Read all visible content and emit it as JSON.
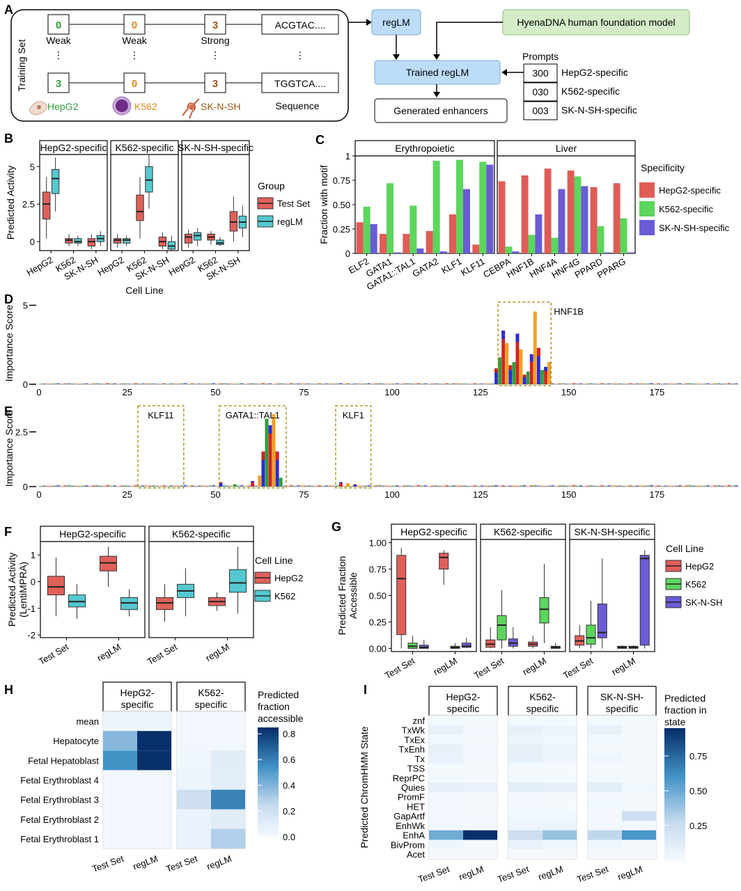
{
  "panel_letters": [
    "A",
    "B",
    "C",
    "D",
    "E",
    "F",
    "G",
    "H",
    "I"
  ],
  "panel_a": {
    "training_set_label": "Training Set",
    "top_row": [
      {
        "value": "0",
        "label": "Weak",
        "color": "#2e9e3c"
      },
      {
        "value": "0",
        "label": "Weak",
        "color": "#e08a1e"
      },
      {
        "value": "3",
        "label": "Strong",
        "color": "#9a5b1a"
      }
    ],
    "bottom_row": [
      {
        "value": "3",
        "label": "HepG2",
        "color": "#2e9e3c"
      },
      {
        "value": "0",
        "label": "K562",
        "color": "#e08a1e"
      },
      {
        "value": "3",
        "label": "SK-N-SH",
        "color": "#9a5b1a"
      }
    ],
    "seq_top": "ACGTAC....",
    "seq_bottom": "TGGTCA....",
    "sequence_label": "Sequence",
    "regLM": "regLM",
    "foundation": "HyenaDNA human foundation model",
    "trained": "Trained regLM",
    "generated": "Generated enhancers",
    "prompts_label": "Prompts",
    "prompts": [
      {
        "code": "300",
        "label": "HepG2-specific"
      },
      {
        "code": "030",
        "label": "K562-specific"
      },
      {
        "code": "003",
        "label": "SK-N-SH-specific"
      }
    ]
  },
  "chart_data": [
    {
      "panel": "B",
      "type": "box",
      "facets": [
        "HepG2-specific",
        "K562-specific",
        "SK-N-SH-specific"
      ],
      "categories": [
        "HepG2",
        "K562",
        "SK-N-SH"
      ],
      "xlabel": "Cell Line",
      "ylabel": "Predicted Activity",
      "ylim": [
        -0.6,
        5.8
      ],
      "yticks": [
        "0",
        "2.5",
        "5"
      ],
      "ytick_values": [
        0,
        2.5,
        5
      ],
      "legend_title": "Group",
      "series": [
        {
          "name": "Test Set",
          "color": "#e0605a"
        },
        {
          "name": "regLM",
          "color": "#54c8d0"
        }
      ],
      "boxes": [
        [
          [
            [
              1.5,
              2.5,
              3.3,
              0.2,
              4.3
            ],
            [
              3.2,
              4.2,
              4.8,
              2.0,
              5.6
            ]
          ],
          [
            [
              -0.1,
              0.1,
              0.2,
              -0.3,
              0.5
            ],
            [
              -0.1,
              0.0,
              0.2,
              -0.3,
              0.4
            ]
          ],
          [
            [
              -0.3,
              0.0,
              0.2,
              -0.5,
              0.5
            ],
            [
              0.0,
              0.2,
              0.4,
              -0.3,
              0.7
            ]
          ]
        ],
        [
          [
            [
              -0.1,
              0.1,
              0.2,
              -0.4,
              0.5
            ],
            [
              -0.1,
              0.1,
              0.2,
              -0.3,
              0.4
            ]
          ],
          [
            [
              1.4,
              2.0,
              3.1,
              0.2,
              4.3
            ],
            [
              3.3,
              4.1,
              5.0,
              2.2,
              5.8
            ]
          ],
          [
            [
              -0.3,
              0.0,
              0.3,
              -0.5,
              0.6
            ],
            [
              -0.5,
              -0.3,
              0.0,
              -0.6,
              0.4
            ]
          ]
        ],
        [
          [
            [
              -0.1,
              0.3,
              0.5,
              -0.4,
              0.8
            ],
            [
              0.1,
              0.4,
              0.6,
              -0.3,
              0.9
            ]
          ],
          [
            [
              0.1,
              0.3,
              0.5,
              -0.2,
              0.7
            ],
            [
              -0.2,
              -0.1,
              0.1,
              -0.3,
              0.3
            ]
          ],
          [
            [
              0.7,
              1.3,
              2.0,
              0.0,
              3.0
            ],
            [
              0.9,
              1.3,
              1.7,
              0.3,
              2.4
            ]
          ]
        ]
      ]
    },
    {
      "panel": "C",
      "type": "bar",
      "facets": [
        {
          "name": "Erythropoietic",
          "categories": [
            "ELF2",
            "GATA1",
            "GATA1::TAL1",
            "GATA2",
            "KLF1",
            "KLF11"
          ]
        },
        {
          "name": "Liver",
          "categories": [
            "CEBPA",
            "HNF1B",
            "HNF4A",
            "HNF4G",
            "PPARD",
            "PPARG"
          ]
        }
      ],
      "ylabel": "Fraction with motif",
      "ylim": [
        0,
        1
      ],
      "yticks": [
        "0",
        "0.25",
        "0.50",
        "0.75",
        "1"
      ],
      "ytick_values": [
        0,
        0.25,
        0.5,
        0.75,
        1
      ],
      "legend_title": "Specificity",
      "series": [
        {
          "name": "HepG2-specific",
          "color": "#e05c57",
          "values": [
            0.32,
            0.2,
            0.2,
            0.23,
            0.4,
            0.09,
            0.74,
            0.8,
            0.87,
            0.85,
            0.68,
            0.72
          ]
        },
        {
          "name": "K562-specific",
          "color": "#5cd65c",
          "values": [
            0.48,
            0.72,
            0.49,
            0.95,
            0.96,
            0.94,
            0.07,
            0.19,
            0.16,
            0.79,
            0.28,
            0.36
          ]
        },
        {
          "name": "SK-N-SH-specific",
          "color": "#6a5cd6",
          "values": [
            0.3,
            0.01,
            0.05,
            0.02,
            0.66,
            0.91,
            0.02,
            0.4,
            0.66,
            0.69,
            0.01,
            0.01
          ]
        }
      ]
    },
    {
      "panel": "D",
      "type": "sequence-logo",
      "ylabel": "Importance Score",
      "yticks": [
        "5",
        "0"
      ],
      "ytick_values": [
        5,
        0
      ],
      "ylim": [
        0,
        5.2
      ],
      "xticks": [
        "0",
        "25",
        "50",
        "75",
        "100",
        "125",
        "150",
        "175"
      ],
      "xtick_values": [
        0,
        25,
        50,
        75,
        100,
        125,
        150,
        175
      ],
      "xlim": [
        0,
        198
      ],
      "motif_boxes": [
        {
          "label": "HNF1B",
          "start": 130,
          "end": 145
        }
      ],
      "peaks": [
        [
          129,
          1.0
        ],
        [
          130,
          1.7
        ],
        [
          131,
          3.4
        ],
        [
          132,
          2.6
        ],
        [
          133,
          1.2
        ],
        [
          134,
          1.4
        ],
        [
          135,
          3.2
        ],
        [
          136,
          2.2
        ],
        [
          137,
          0.6
        ],
        [
          138,
          0.8
        ],
        [
          139,
          1.9
        ],
        [
          140,
          4.6
        ],
        [
          141,
          2.3
        ],
        [
          142,
          0.9
        ],
        [
          143,
          1.1
        ],
        [
          144,
          1.4
        ]
      ]
    },
    {
      "panel": "E",
      "type": "sequence-logo",
      "ylabel": "Importance Score",
      "yticks": [
        "2.5",
        "0"
      ],
      "ytick_values": [
        2.5,
        0
      ],
      "ylim": [
        0,
        3.5
      ],
      "xticks": [
        "0",
        "25",
        "50",
        "75",
        "100",
        "125",
        "150",
        "175"
      ],
      "xtick_values": [
        0,
        25,
        50,
        75,
        100,
        125,
        150,
        175
      ],
      "xlim": [
        0,
        198
      ],
      "motif_boxes": [
        {
          "label": "KLF11",
          "start": 28,
          "end": 41
        },
        {
          "label": "GATA1::TAL1",
          "start": 51,
          "end": 70
        },
        {
          "label": "KLF1",
          "start": 84,
          "end": 94
        }
      ],
      "peaks": [
        [
          51,
          0.2
        ],
        [
          55,
          0.1
        ],
        [
          60,
          0.25
        ],
        [
          62,
          0.5
        ],
        [
          63,
          1.6
        ],
        [
          64,
          3.1
        ],
        [
          65,
          2.8
        ],
        [
          66,
          3.3
        ],
        [
          67,
          1.6
        ],
        [
          68,
          0.4
        ],
        [
          85,
          0.2
        ],
        [
          87,
          0.15
        ],
        [
          89,
          0.1
        ]
      ]
    },
    {
      "panel": "F",
      "type": "box",
      "facets": [
        "HepG2-specific",
        "K562-specific"
      ],
      "categories": [
        "Test Set",
        "regLM"
      ],
      "ylabel": "Predicted Activity\n(LentiMPRA)",
      "ylim": [
        -2.1,
        1.5
      ],
      "yticks": [
        "1",
        "0",
        "-1",
        "-2"
      ],
      "ytick_values": [
        1,
        0,
        -1,
        -2
      ],
      "legend_title": "Cell Line",
      "series": [
        {
          "name": "HepG2",
          "color": "#e0605a"
        },
        {
          "name": "K562",
          "color": "#54c8d0"
        }
      ],
      "boxes": [
        [
          [
            [
              -0.5,
              -0.2,
              0.2,
              -1.3,
              0.9
            ],
            [
              -0.95,
              -0.75,
              -0.5,
              -1.4,
              -0.1
            ]
          ],
          [
            [
              0.4,
              0.7,
              0.95,
              -0.2,
              1.3
            ],
            [
              -1.05,
              -0.8,
              -0.6,
              -1.3,
              -0.3
            ]
          ]
        ],
        [
          [
            [
              -1.05,
              -0.8,
              -0.6,
              -1.5,
              -0.1
            ],
            [
              -0.6,
              -0.35,
              -0.1,
              -1.3,
              0.5
            ]
          ],
          [
            [
              -0.9,
              -0.75,
              -0.6,
              -1.1,
              -0.4
            ],
            [
              -0.4,
              -0.05,
              0.45,
              -1.2,
              1.3
            ]
          ]
        ]
      ]
    },
    {
      "panel": "G",
      "type": "box",
      "facets": [
        "HepG2-specific",
        "K562-specific",
        "SK-N-SH-specific"
      ],
      "categories": [
        "Test Set",
        "regLM"
      ],
      "ylabel": "Predicted Fraction\nAccessible",
      "ylim": [
        -0.03,
        1.03
      ],
      "yticks": [
        "1.00",
        "0.75",
        "0.50",
        "0.25",
        "0.00"
      ],
      "ytick_values": [
        1,
        0.75,
        0.5,
        0.25,
        0
      ],
      "legend_title": "Cell Line",
      "series": [
        {
          "name": "HepG2",
          "color": "#e0605a"
        },
        {
          "name": "K562",
          "color": "#5cd65c"
        },
        {
          "name": "SK-N-SH",
          "color": "#6a5cd6"
        }
      ],
      "boxes": [
        [
          [
            [
              0.13,
              0.66,
              0.88,
              0.0,
              0.95
            ],
            [
              0.0,
              0.02,
              0.05,
              0.0,
              0.12
            ],
            [
              0.0,
              0.01,
              0.03,
              0.0,
              0.08
            ]
          ],
          [
            [
              0.75,
              0.86,
              0.9,
              0.6,
              0.93
            ],
            [
              0.0,
              0.01,
              0.02,
              0.0,
              0.05
            ],
            [
              0.01,
              0.02,
              0.05,
              0.0,
              0.1
            ]
          ]
        ],
        [
          [
            [
              0.01,
              0.04,
              0.08,
              0.0,
              0.2
            ],
            [
              0.08,
              0.22,
              0.31,
              0.0,
              0.55
            ],
            [
              0.02,
              0.05,
              0.09,
              0.0,
              0.2
            ]
          ],
          [
            [
              0.02,
              0.04,
              0.06,
              0.0,
              0.12
            ],
            [
              0.24,
              0.37,
              0.48,
              0.05,
              0.8
            ],
            [
              0.0,
              0.01,
              0.02,
              0.0,
              0.05
            ]
          ]
        ],
        [
          [
            [
              0.03,
              0.07,
              0.12,
              0.0,
              0.22
            ],
            [
              0.04,
              0.1,
              0.22,
              0.0,
              0.45
            ],
            [
              0.1,
              0.15,
              0.42,
              0.0,
              0.85
            ]
          ],
          [
            [
              0.0,
              0.01,
              0.02,
              0.0,
              0.03
            ],
            [
              0.0,
              0.01,
              0.02,
              0.0,
              0.03
            ],
            [
              0.03,
              0.85,
              0.88,
              0.0,
              0.93
            ]
          ]
        ]
      ]
    },
    {
      "panel": "H",
      "type": "heatmap",
      "facets": [
        "HepG2-\nspecific",
        "K562-\nspecific"
      ],
      "columns": [
        "Test Set",
        "regLM"
      ],
      "rows": [
        "mean",
        "Hepatocyte",
        "Fetal Hepatoblast",
        "Fetal Erythroblast 4",
        "Fetal Erythroblast 3",
        "Fetal Erythroblast 2",
        "Fetal Erythroblast 1"
      ],
      "values": [
        [
          [
            0.05,
            0.05
          ],
          [
            0.4,
            0.9
          ],
          [
            0.55,
            0.98
          ],
          [
            0.03,
            0.03
          ],
          [
            0.03,
            0.03
          ],
          [
            0.03,
            0.03
          ],
          [
            0.03,
            0.03
          ]
        ],
        [
          [
            0.03,
            0.03
          ],
          [
            0.03,
            0.03
          ],
          [
            0.04,
            0.12
          ],
          [
            0.05,
            0.1
          ],
          [
            0.22,
            0.6
          ],
          [
            0.07,
            0.12
          ],
          [
            0.07,
            0.3
          ]
        ]
      ],
      "legend_title": "Predicted\nfraction\naccessible",
      "legend_ticks": [
        "0.8",
        "0.6",
        "0.4",
        "0.2",
        "0.0"
      ],
      "legend_tick_values": [
        0.8,
        0.6,
        0.4,
        0.2,
        0.0
      ],
      "legend_range": [
        0,
        0.85
      ]
    },
    {
      "panel": "I",
      "type": "heatmap",
      "facets": [
        "HepG2-\nspecific",
        "K562-\nspecific",
        "SK-N-SH-\nspecific"
      ],
      "columns": [
        "Test Set",
        "regLM"
      ],
      "rows": [
        "znf",
        "TxWk",
        "TxEx",
        "TxEnh",
        "Tx",
        "TSS",
        "ReprPC",
        "Quies",
        "PromF",
        "HET",
        "GapArtf",
        "EnhWk",
        "EnhA",
        "BivProm",
        "Acet"
      ],
      "ylabel": "Predicted ChromHMM State",
      "values": [
        [
          [
            0.02,
            0.02
          ],
          [
            0.1,
            0.03
          ],
          [
            0.04,
            0.02
          ],
          [
            0.1,
            0.03
          ],
          [
            0.08,
            0.03
          ],
          [
            0.02,
            0.02
          ],
          [
            0.03,
            0.02
          ],
          [
            0.1,
            0.08
          ],
          [
            0.03,
            0.02
          ],
          [
            0.03,
            0.02
          ],
          [
            0.03,
            0.03
          ],
          [
            0.04,
            0.03
          ],
          [
            0.5,
            0.95
          ],
          [
            0.05,
            0.02
          ],
          [
            0.02,
            0.02
          ]
        ],
        [
          [
            0.02,
            0.02
          ],
          [
            0.1,
            0.07
          ],
          [
            0.06,
            0.04
          ],
          [
            0.1,
            0.07
          ],
          [
            0.1,
            0.06
          ],
          [
            0.02,
            0.02
          ],
          [
            0.03,
            0.02
          ],
          [
            0.12,
            0.1
          ],
          [
            0.03,
            0.02
          ],
          [
            0.03,
            0.02
          ],
          [
            0.04,
            0.04
          ],
          [
            0.06,
            0.07
          ],
          [
            0.25,
            0.4
          ],
          [
            0.08,
            0.05
          ],
          [
            0.02,
            0.02
          ]
        ],
        [
          [
            0.02,
            0.02
          ],
          [
            0.1,
            0.02
          ],
          [
            0.04,
            0.02
          ],
          [
            0.02,
            0.02
          ],
          [
            0.05,
            0.02
          ],
          [
            0.02,
            0.02
          ],
          [
            0.03,
            0.02
          ],
          [
            0.12,
            0.04
          ],
          [
            0.03,
            0.02
          ],
          [
            0.04,
            0.02
          ],
          [
            0.03,
            0.25
          ],
          [
            0.04,
            0.03
          ],
          [
            0.3,
            0.6
          ],
          [
            0.05,
            0.02
          ],
          [
            0.02,
            0.02
          ]
        ]
      ],
      "legend_title": "Predicted\nfraction in\nstate",
      "legend_ticks": [
        "0.75",
        "0.50",
        "0.25"
      ],
      "legend_tick_values": [
        0.75,
        0.5,
        0.25
      ],
      "legend_range": [
        0,
        0.95
      ]
    }
  ]
}
